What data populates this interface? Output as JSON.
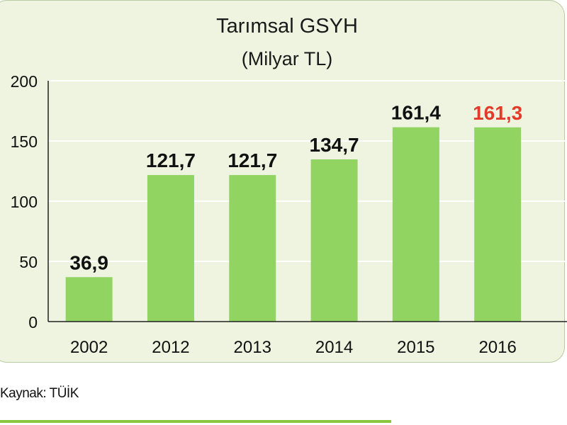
{
  "chart_data": {
    "type": "bar",
    "title": "Tarımsal GSYH",
    "subtitle": "(Milyar TL)",
    "categories": [
      "2002",
      "2012",
      "2013",
      "2014",
      "2015",
      "2016"
    ],
    "values": [
      36.9,
      121.7,
      121.7,
      134.7,
      161.4,
      161.3
    ],
    "data_labels": [
      "36,9",
      "121,7",
      "121,7",
      "134,7",
      "161,4",
      "161,3"
    ],
    "y_ticks": [
      "0",
      "50",
      "100",
      "150",
      "200"
    ],
    "ylim": [
      0,
      200
    ],
    "xlabel": "",
    "ylabel": "",
    "grid": true,
    "highlight_index": 5,
    "colors": {
      "bar": "#92d462",
      "label": "#111111",
      "highlight_label": "#e23b2a",
      "grid": "#ffffff",
      "axis": "#222222",
      "panel_bg": "#eef4df"
    }
  },
  "source": "Kaynak: TÜİK"
}
